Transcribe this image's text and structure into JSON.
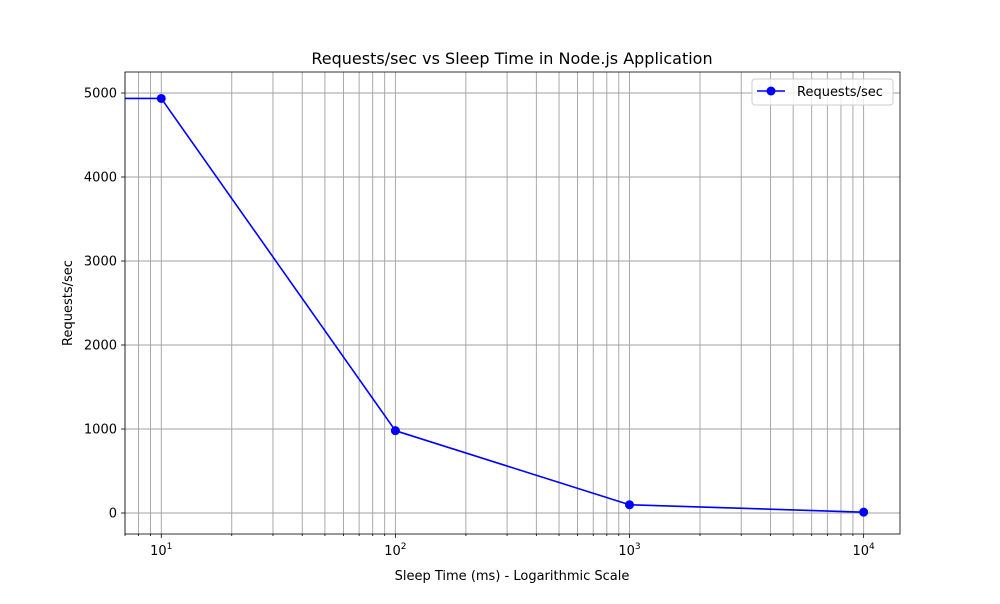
{
  "chart_data": {
    "type": "line",
    "title": "Requests/sec vs Sleep Time in Node.js Application",
    "xlabel": "Sleep Time (ms) - Logarithmic Scale",
    "ylabel": "Requests/sec",
    "x_scale": "log",
    "xlim": [
      7.0,
      14300
    ],
    "ylim": [
      -250,
      5250
    ],
    "x_ticks": [
      {
        "value": 10,
        "base": "10",
        "exp": "1"
      },
      {
        "value": 100,
        "base": "10",
        "exp": "2"
      },
      {
        "value": 1000,
        "base": "10",
        "exp": "3"
      },
      {
        "value": 10000,
        "base": "10",
        "exp": "4"
      }
    ],
    "y_ticks": [
      0,
      1000,
      2000,
      3000,
      4000,
      5000
    ],
    "grid": "major and minor",
    "legend_position": "upper right",
    "series": [
      {
        "name": "Requests/sec",
        "color": "#0000ff",
        "marker": "circle",
        "x": [
          1,
          10,
          100,
          1000,
          10000
        ],
        "y": [
          4940,
          4935,
          980,
          98,
          10
        ]
      }
    ]
  }
}
